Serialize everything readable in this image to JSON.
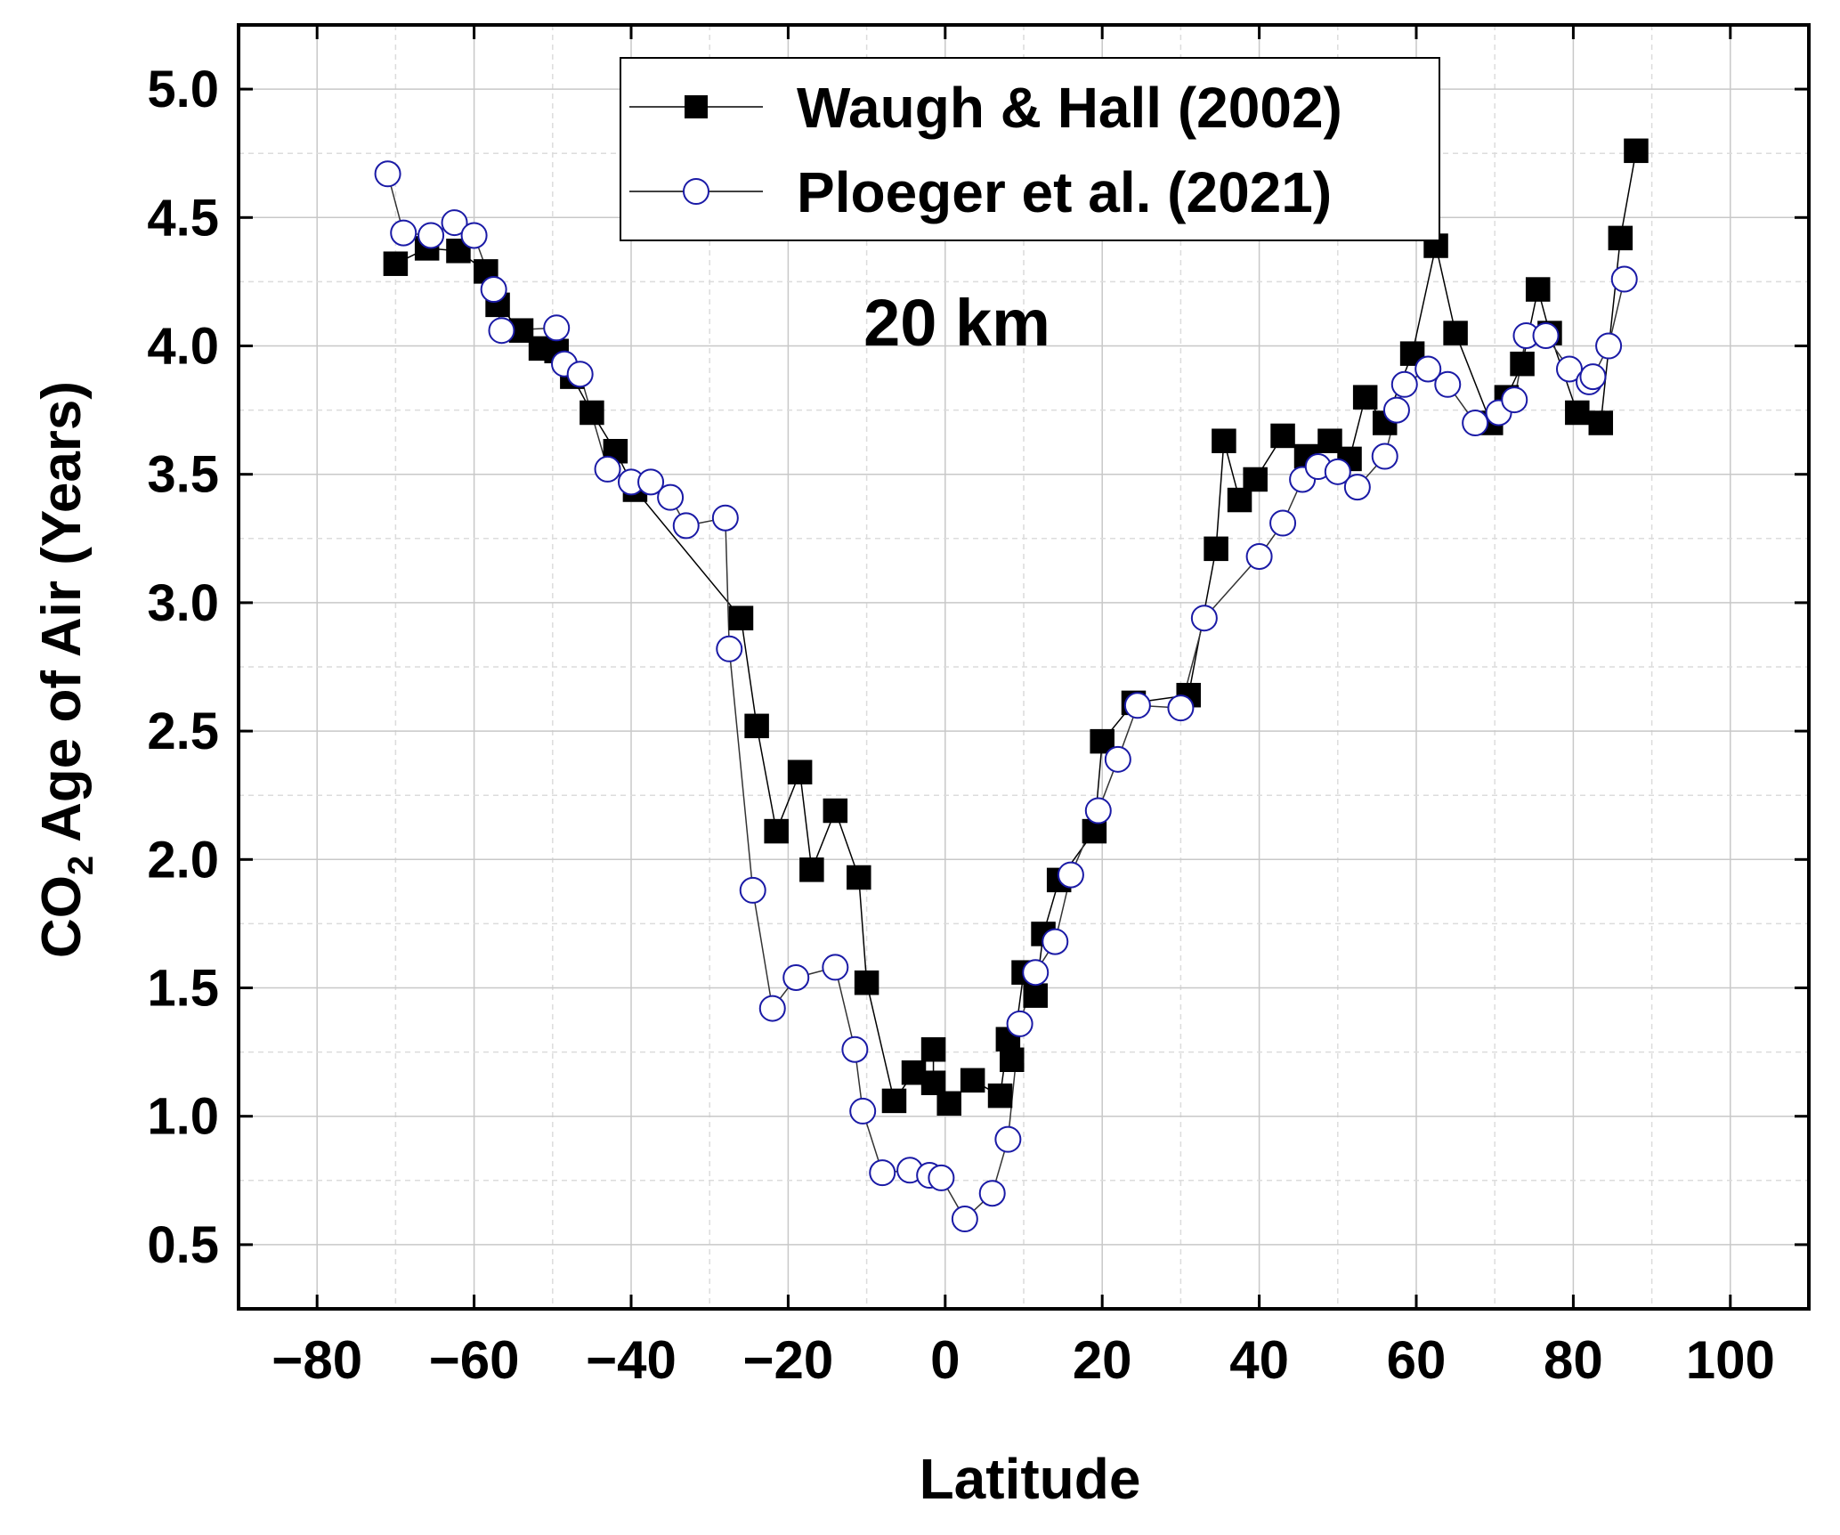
{
  "chart_data": {
    "type": "line",
    "annotation": "20 km",
    "xlabel": "Latitude",
    "ylabel_main": "CO",
    "ylabel_sub": "2",
    "ylabel_rest": " Age of Air (Years)",
    "xlim": [
      -90,
      110
    ],
    "ylim": [
      0.25,
      5.25
    ],
    "xticks": [
      -80,
      -60,
      -40,
      -20,
      0,
      20,
      40,
      60,
      80,
      100
    ],
    "yticks": [
      0.5,
      1.0,
      1.5,
      2.0,
      2.5,
      3.0,
      3.5,
      4.0,
      4.5,
      5.0
    ],
    "xtick_labels": [
      "−80",
      "−60",
      "−40",
      "−20",
      "0",
      "20",
      "40",
      "60",
      "80",
      "100"
    ],
    "ytick_labels": [
      "0.5",
      "1.0",
      "1.5",
      "2.0",
      "2.5",
      "3.0",
      "3.5",
      "4.0",
      "4.5",
      "5.0"
    ],
    "grid": true,
    "legend_position": "top-center",
    "series": [
      {
        "name": "Waugh & Hall (2002)",
        "marker": "filled-square",
        "color": "#000000",
        "points": [
          [
            -70,
            4.32
          ],
          [
            -66,
            4.38
          ],
          [
            -62,
            4.37
          ],
          [
            -58.5,
            4.29
          ],
          [
            -57,
            4.16
          ],
          [
            -54,
            4.06
          ],
          [
            -51.5,
            3.99
          ],
          [
            -49.5,
            3.98
          ],
          [
            -47.5,
            3.88
          ],
          [
            -45,
            3.74
          ],
          [
            -42,
            3.59
          ],
          [
            -39.5,
            3.44
          ],
          [
            -26,
            2.94
          ],
          [
            -24,
            2.52
          ],
          [
            -21.5,
            2.11
          ],
          [
            -18.5,
            2.34
          ],
          [
            -17,
            1.96
          ],
          [
            -14,
            2.19
          ],
          [
            -11,
            1.93
          ],
          [
            -10,
            1.52
          ],
          [
            -6.5,
            1.06
          ],
          [
            -4,
            1.17
          ],
          [
            -1.5,
            1.26
          ],
          [
            -1.5,
            1.13
          ],
          [
            0.5,
            1.05
          ],
          [
            3.5,
            1.14
          ],
          [
            7,
            1.08
          ],
          [
            8,
            1.3
          ],
          [
            8.5,
            1.22
          ],
          [
            10,
            1.56
          ],
          [
            11.5,
            1.47
          ],
          [
            12.5,
            1.71
          ],
          [
            14.5,
            1.92
          ],
          [
            19,
            2.11
          ],
          [
            20,
            2.46
          ],
          [
            24,
            2.61
          ],
          [
            31,
            2.64
          ],
          [
            34.5,
            3.21
          ],
          [
            35.5,
            3.63
          ],
          [
            37.5,
            3.4
          ],
          [
            39.5,
            3.48
          ],
          [
            43,
            3.65
          ],
          [
            46,
            3.57
          ],
          [
            49,
            3.63
          ],
          [
            51.5,
            3.56
          ],
          [
            53.5,
            3.8
          ],
          [
            56,
            3.7
          ],
          [
            59.5,
            3.97
          ],
          [
            62.5,
            4.39
          ],
          [
            65,
            4.05
          ],
          [
            69.5,
            3.7
          ],
          [
            71.5,
            3.8
          ],
          [
            73.5,
            3.93
          ],
          [
            75.5,
            4.22
          ],
          [
            77,
            4.05
          ],
          [
            80.5,
            3.74
          ],
          [
            83.5,
            3.7
          ],
          [
            86,
            4.42
          ],
          [
            88,
            4.76
          ]
        ]
      },
      {
        "name": "Ploeger et al. (2021)",
        "marker": "open-circle",
        "color": "#1a1aa6",
        "points": [
          [
            -71,
            4.67
          ],
          [
            -69,
            4.44
          ],
          [
            -65.5,
            4.43
          ],
          [
            -62.5,
            4.48
          ],
          [
            -60,
            4.43
          ],
          [
            -57.5,
            4.22
          ],
          [
            -56.5,
            4.06
          ],
          [
            -49.5,
            4.07
          ],
          [
            -48.5,
            3.93
          ],
          [
            -46.5,
            3.89
          ],
          [
            -43,
            3.52
          ],
          [
            -40,
            3.47
          ],
          [
            -37.5,
            3.47
          ],
          [
            -35,
            3.41
          ],
          [
            -33,
            3.3
          ],
          [
            -28,
            3.33
          ],
          [
            -27.5,
            2.82
          ],
          [
            -24.5,
            1.88
          ],
          [
            -22,
            1.42
          ],
          [
            -19,
            1.54
          ],
          [
            -14,
            1.58
          ],
          [
            -11.5,
            1.26
          ],
          [
            -10.5,
            1.02
          ],
          [
            -8,
            0.78
          ],
          [
            -4.5,
            0.79
          ],
          [
            -2,
            0.77
          ],
          [
            -0.5,
            0.76
          ],
          [
            2.5,
            0.6
          ],
          [
            6,
            0.7
          ],
          [
            8,
            0.91
          ],
          [
            9.5,
            1.36
          ],
          [
            11.5,
            1.56
          ],
          [
            14,
            1.68
          ],
          [
            16,
            1.94
          ],
          [
            19.5,
            2.19
          ],
          [
            22,
            2.39
          ],
          [
            24.5,
            2.6
          ],
          [
            30,
            2.59
          ],
          [
            33,
            2.94
          ],
          [
            40,
            3.18
          ],
          [
            43,
            3.31
          ],
          [
            45.5,
            3.48
          ],
          [
            47.5,
            3.53
          ],
          [
            50,
            3.51
          ],
          [
            52.5,
            3.45
          ],
          [
            56,
            3.57
          ],
          [
            57.5,
            3.75
          ],
          [
            58.5,
            3.85
          ],
          [
            61.5,
            3.91
          ],
          [
            64,
            3.85
          ],
          [
            67.5,
            3.7
          ],
          [
            70.5,
            3.74
          ],
          [
            72.5,
            3.79
          ],
          [
            74,
            4.04
          ],
          [
            76.5,
            4.04
          ],
          [
            79.5,
            3.91
          ],
          [
            82,
            3.86
          ],
          [
            82.5,
            3.88
          ],
          [
            84.5,
            4.0
          ],
          [
            86.5,
            4.26
          ]
        ]
      }
    ]
  }
}
